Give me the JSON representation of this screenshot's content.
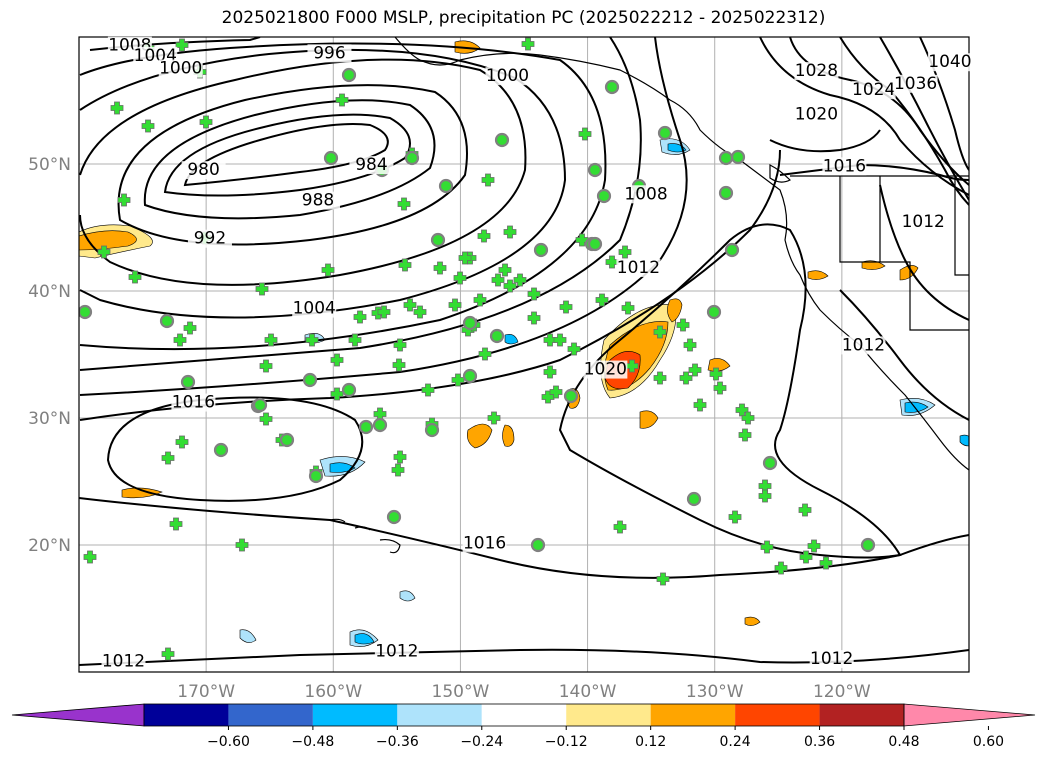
{
  "title": "2025021800 F000 MSLP, precipitation PC (2025022212 - 2025022312)",
  "map": {
    "lon_range": [
      -180,
      -110
    ],
    "lat_range": [
      10,
      60
    ],
    "lat_ticks": [
      {
        "value": 20,
        "label": "20°N"
      },
      {
        "value": 30,
        "label": "30°N"
      },
      {
        "value": 40,
        "label": "40°N"
      },
      {
        "value": 50,
        "label": "50°N"
      }
    ],
    "lon_ticks": [
      {
        "value": -170,
        "label": "170°W"
      },
      {
        "value": -160,
        "label": "160°W"
      },
      {
        "value": -150,
        "label": "150°W"
      },
      {
        "value": -140,
        "label": "140°W"
      },
      {
        "value": -130,
        "label": "130°W"
      },
      {
        "value": -120,
        "label": "120°W"
      }
    ],
    "grid": true,
    "isobar_labels": [
      {
        "text": "1008",
        "lon": -176,
        "lat": 59
      },
      {
        "text": "1004",
        "lon": -174,
        "lat": 58.2
      },
      {
        "text": "1000",
        "lon": -172,
        "lat": 57.2
      },
      {
        "text": "996",
        "lon": -160.3,
        "lat": 58.4
      },
      {
        "text": "1000",
        "lon": -146.3,
        "lat": 56.6
      },
      {
        "text": "980",
        "lon": -170.2,
        "lat": 49.2
      },
      {
        "text": "984",
        "lon": -157,
        "lat": 49.6
      },
      {
        "text": "988",
        "lon": -161.2,
        "lat": 46.8
      },
      {
        "text": "992",
        "lon": -169.7,
        "lat": 43.8
      },
      {
        "text": "1004",
        "lon": -161.5,
        "lat": 38.3
      },
      {
        "text": "1016",
        "lon": -171,
        "lat": 30.9
      },
      {
        "text": "1008",
        "lon": -135.4,
        "lat": 47.3
      },
      {
        "text": "1012",
        "lon": -136,
        "lat": 41.5
      },
      {
        "text": "1020",
        "lon": -138.6,
        "lat": 33.5
      },
      {
        "text": "1028",
        "lon": -122,
        "lat": 57
      },
      {
        "text": "1024",
        "lon": -117.5,
        "lat": 55.5
      },
      {
        "text": "1020",
        "lon": -122,
        "lat": 53.6
      },
      {
        "text": "1036",
        "lon": -114.2,
        "lat": 56
      },
      {
        "text": "1040",
        "lon": -111.5,
        "lat": 57.7
      },
      {
        "text": "1016",
        "lon": -119.8,
        "lat": 49.5
      },
      {
        "text": "1012",
        "lon": -113.6,
        "lat": 45.1
      },
      {
        "text": "1012",
        "lon": -118.3,
        "lat": 35.4
      },
      {
        "text": "1016",
        "lon": -148.1,
        "lat": 19.8
      },
      {
        "text": "1012",
        "lon": -155,
        "lat": 11.3
      },
      {
        "text": "1012",
        "lon": -176.5,
        "lat": 10.5
      },
      {
        "text": "1012",
        "lon": -120.8,
        "lat": 10.7
      }
    ]
  },
  "colorbar": {
    "colors": [
      "#9933cc",
      "#000099",
      "#3366cc",
      "#00bbff",
      "#aee3fb",
      "#ffffff",
      "#ffe98c",
      "#ffa500",
      "#ff4500",
      "#b22222",
      "#ff88aa"
    ],
    "tick_values": [
      -0.6,
      -0.48,
      -0.36,
      -0.24,
      -0.12,
      0.12,
      0.24,
      0.36,
      0.48,
      0.6
    ],
    "tick_labels": [
      "−0.60",
      "−0.48",
      "−0.36",
      "−0.24",
      "−0.12",
      "0.12",
      "0.24",
      "0.36",
      "0.48",
      "0.60"
    ]
  },
  "station_colors": {
    "cross": "#33dd33",
    "dot": "#808080"
  }
}
